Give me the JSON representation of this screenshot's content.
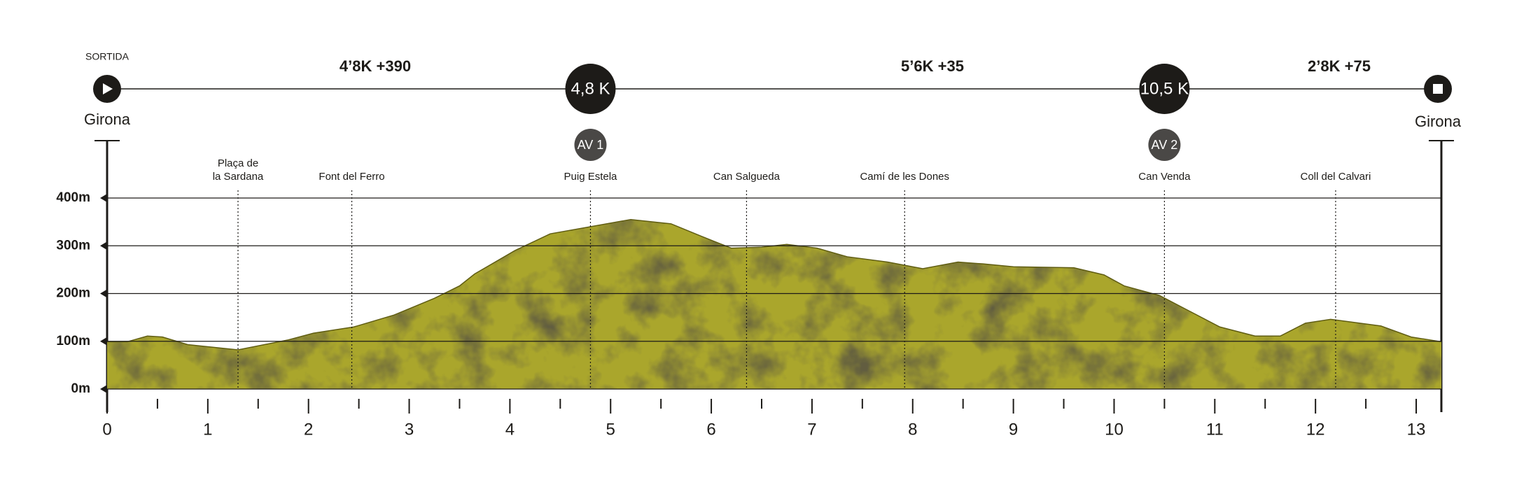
{
  "header": {
    "start_label": "SORTIDA",
    "start": "Girona",
    "end": "Girona",
    "segments": [
      "4’8K +390",
      "5’6K +35",
      "2’8K +75"
    ],
    "checkpoints": [
      {
        "km": 4.8,
        "label": "4,8 K",
        "name": "AV 1"
      },
      {
        "km": 10.5,
        "label": "10,5 K",
        "name": "AV 2"
      }
    ]
  },
  "chart_data": {
    "type": "area",
    "color": "#aaa62c",
    "x": [
      0,
      0.2,
      0.4,
      0.55,
      0.8,
      1.3,
      1.8,
      2.05,
      2.45,
      2.85,
      3.25,
      3.5,
      3.65,
      4.05,
      4.4,
      4.8,
      5.2,
      5.6,
      5.9,
      6.2,
      6.5,
      6.75,
      7.05,
      7.35,
      7.75,
      8.1,
      8.45,
      8.7,
      9.0,
      9.6,
      9.9,
      10.1,
      10.45,
      10.75,
      11.05,
      11.4,
      11.65,
      11.9,
      12.15,
      12.65,
      12.95,
      13.25
    ],
    "values": [
      99,
      99,
      111,
      109,
      93,
      82,
      103,
      117,
      130,
      155,
      190,
      216,
      241,
      290,
      325,
      340,
      355,
      346,
      320,
      295,
      297,
      303,
      295,
      277,
      266,
      252,
      266,
      262,
      256,
      254,
      239,
      216,
      196,
      163,
      130,
      111,
      111,
      138,
      146,
      132,
      109,
      99
    ],
    "xlim": [
      0,
      13.25
    ],
    "xticks": [
      0,
      1,
      2,
      3,
      4,
      5,
      6,
      7,
      8,
      9,
      10,
      11,
      12,
      13
    ],
    "xminorticks": [
      0.5,
      1.5,
      2.5,
      3.5,
      4.5,
      5.5,
      6.5,
      7.5,
      8.5,
      9.5,
      10.5,
      11.5,
      12.5
    ],
    "ylim": [
      0,
      400
    ],
    "yticks": [
      {
        "value": 0,
        "label": "0m"
      },
      {
        "value": 100,
        "label": "100m"
      },
      {
        "value": 200,
        "label": "200m"
      },
      {
        "value": 300,
        "label": "300m"
      },
      {
        "value": 400,
        "label": "400m"
      }
    ],
    "grid": true,
    "waypoints": [
      {
        "name": [
          "Plaça de",
          "la Sardana"
        ],
        "km": 1.3
      },
      {
        "name": [
          "Font del Ferro"
        ],
        "km": 2.43
      },
      {
        "name": [
          "Puig Estela"
        ],
        "km": 4.8
      },
      {
        "name": [
          "Can Salgueda"
        ],
        "km": 6.35
      },
      {
        "name": [
          "Camí de les Dones"
        ],
        "km": 7.92
      },
      {
        "name": [
          "Can Venda"
        ],
        "km": 10.5
      },
      {
        "name": [
          "Coll del Calvari"
        ],
        "km": 12.2
      }
    ]
  }
}
